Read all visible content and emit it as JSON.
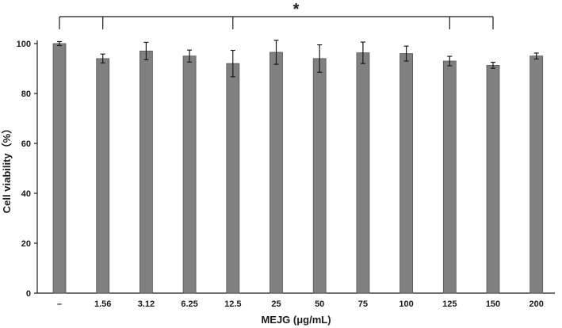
{
  "chart_data": {
    "type": "bar",
    "categories": [
      "–",
      "1.56",
      "3.12",
      "6.25",
      "12.5",
      "25",
      "50",
      "75",
      "100",
      "125",
      "150",
      "200"
    ],
    "values": [
      100,
      94,
      97,
      95,
      92,
      96.5,
      94,
      96.3,
      96,
      93,
      91.3,
      95
    ],
    "errors": [
      0.8,
      1.8,
      3.5,
      2.4,
      5.3,
      4.8,
      5.5,
      4.3,
      3.0,
      1.9,
      1.2,
      1.2
    ],
    "xlabel": "MEJG (μg/mL)",
    "ylabel": "Cell viability（%）",
    "ylim": [
      0,
      100
    ],
    "yticks": [
      0,
      20,
      40,
      60,
      80,
      100
    ],
    "grid": false,
    "bar_color": "#808080",
    "significance": {
      "symbol": "*",
      "reference_category": "–",
      "compared_categories": [
        "1.56",
        "12.5",
        "125",
        "150"
      ]
    }
  }
}
